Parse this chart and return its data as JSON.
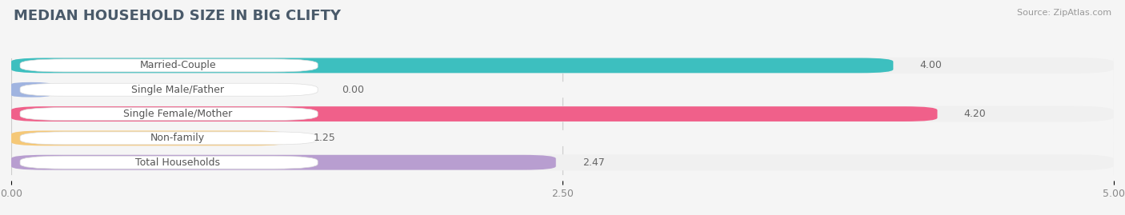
{
  "title": "MEDIAN HOUSEHOLD SIZE IN BIG CLIFTY",
  "source": "Source: ZipAtlas.com",
  "categories": [
    "Married-Couple",
    "Single Male/Father",
    "Single Female/Mother",
    "Non-family",
    "Total Households"
  ],
  "values": [
    4.0,
    0.0,
    4.2,
    1.25,
    2.47
  ],
  "bar_colors": [
    "#3dbfbf",
    "#a0b4e0",
    "#f0608a",
    "#f5c878",
    "#b89ed0"
  ],
  "label_bg_colors": [
    "#eaf8f8",
    "#eaf0fa",
    "#fdeaf2",
    "#fdf5e8",
    "#f5eefa"
  ],
  "row_bg_colors": [
    "#f0f0f0",
    "#f5f5f5",
    "#f0f0f0",
    "#f5f5f5",
    "#f0f0f0"
  ],
  "xlim": [
    0,
    5.0
  ],
  "xticks": [
    0.0,
    2.5,
    5.0
  ],
  "xtick_labels": [
    "0.00",
    "2.50",
    "5.00"
  ],
  "title_fontsize": 13,
  "label_fontsize": 9,
  "value_fontsize": 9,
  "bar_height": 0.62,
  "background_color": "#f5f5f5",
  "label_text_color": "#555555",
  "value_color": "#666666",
  "title_color": "#4a5a6a"
}
